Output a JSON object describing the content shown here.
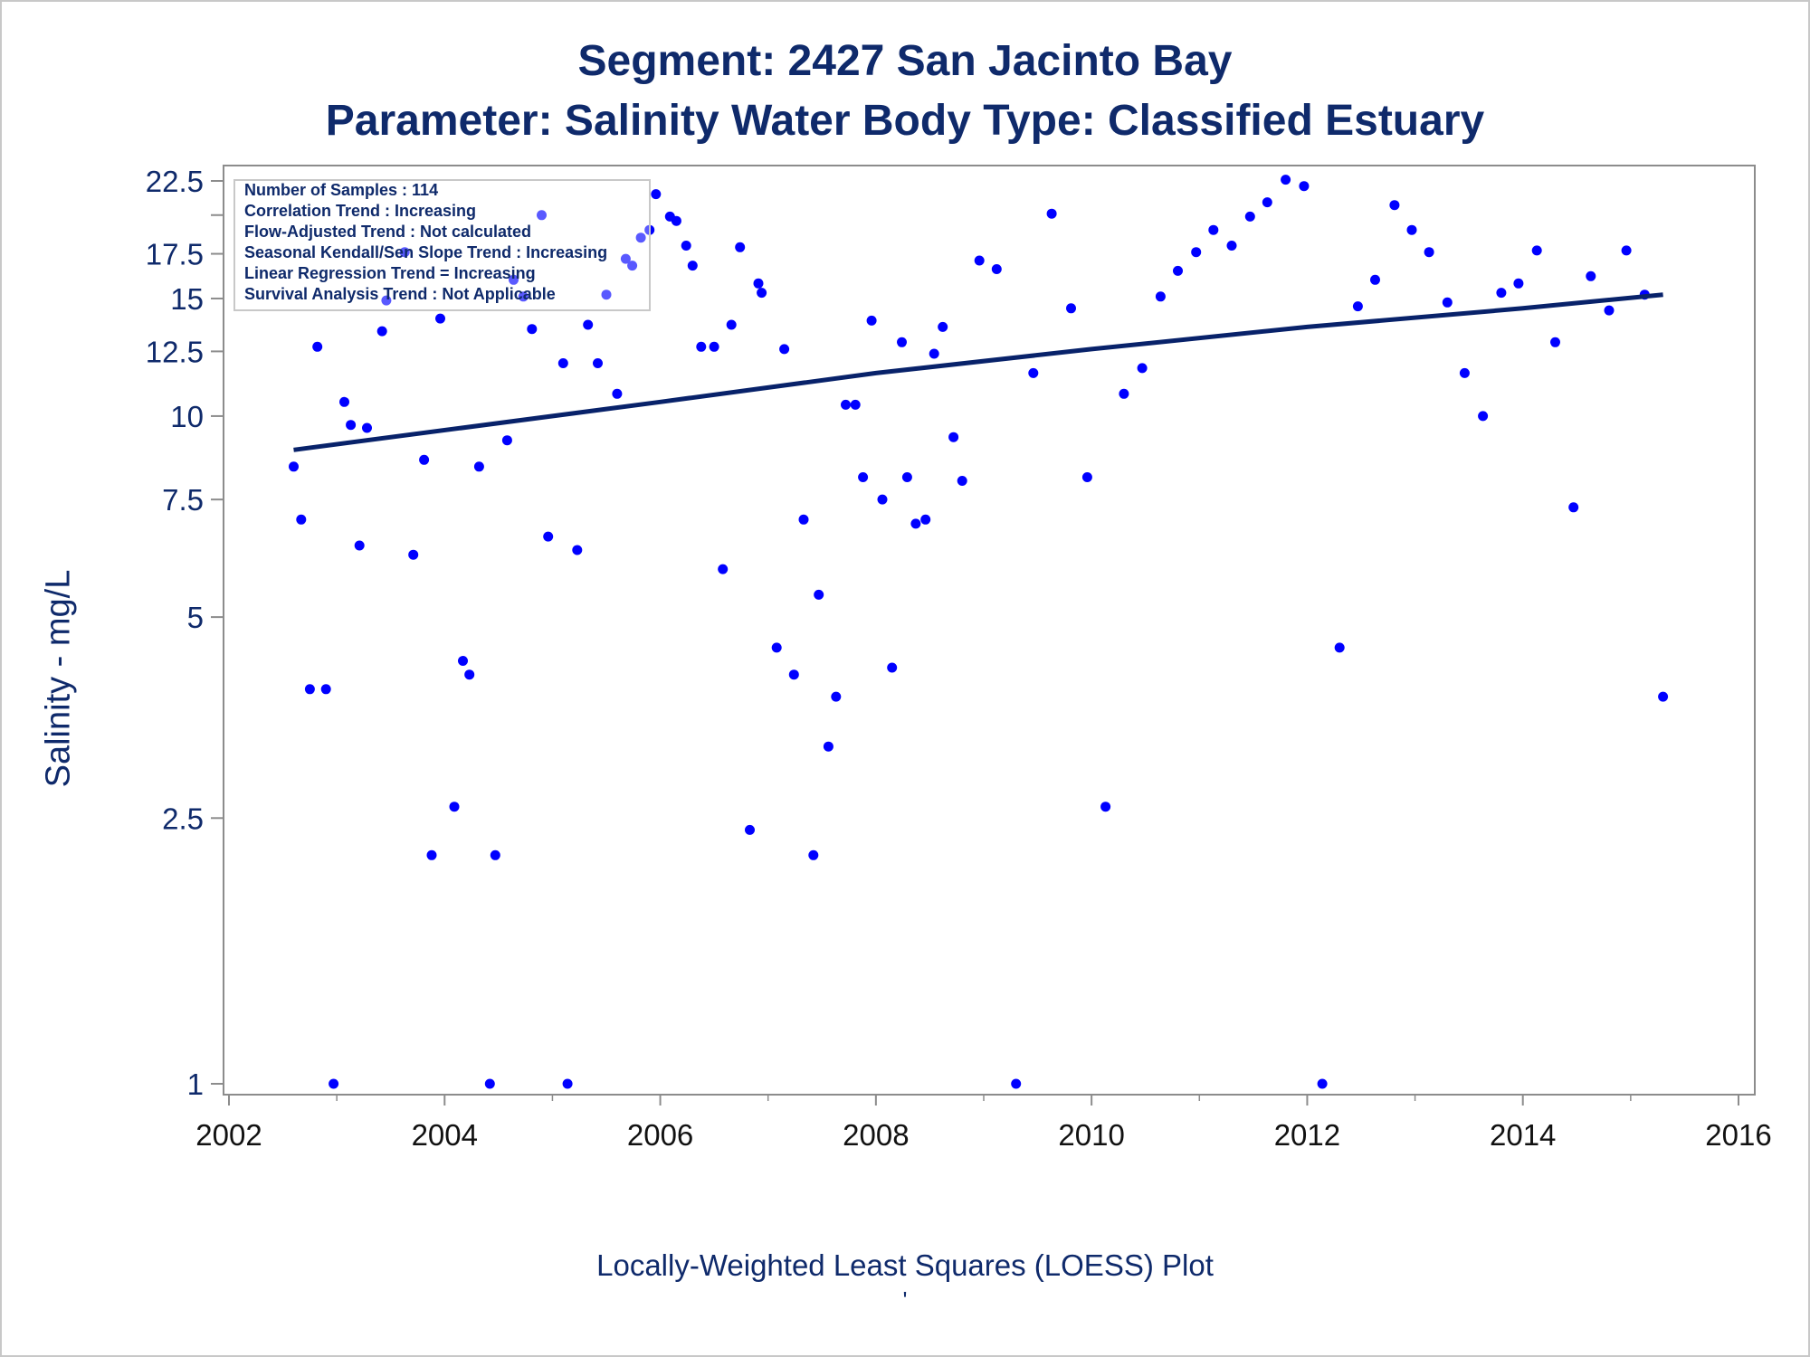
{
  "titles": {
    "line1": "Segment: 2427  San Jacinto Bay",
    "line2": "Parameter: Salinity   Water Body Type: Classified Estuary"
  },
  "legend_lines": [
    "Number of Samples : 114",
    "Correlation Trend : Increasing",
    "Flow-Adjusted Trend : Not calculated",
    "Seasonal Kendall/Sen Slope Trend : Increasing",
    "Linear Regression Trend = Increasing",
    "Survival Analysis Trend : Not Applicable"
  ],
  "footer_mark": "'",
  "colors": {
    "text": "#0f2a6b",
    "points": "#0000ff",
    "line": "#08226a",
    "axis": "#8c8c8c",
    "frame": "#c8c8c8"
  },
  "chart_data": {
    "type": "scatter",
    "xlabel": "Locally-Weighted Least Squares (LOESS) Plot",
    "ylabel": "Salinity - mg/L",
    "y_scale": "log",
    "xlim": [
      2002,
      2016
    ],
    "ylim": [
      1,
      22.5
    ],
    "x_ticks": [
      "2002",
      "2004",
      "2006",
      "2008",
      "2010",
      "2012",
      "2014",
      "2016"
    ],
    "y_ticks": [
      "1",
      "2.5",
      "5",
      "7.5",
      "10",
      "12.5",
      "15",
      "17.5",
      "22.5"
    ],
    "grid": false,
    "legend_position": "top-left",
    "series": [
      {
        "type": "scatter",
        "points": [
          [
            2002.6,
            8.4
          ],
          [
            2002.67,
            7.0
          ],
          [
            2002.75,
            3.9
          ],
          [
            2002.82,
            12.7
          ],
          [
            2002.9,
            3.9
          ],
          [
            2002.97,
            1.0
          ],
          [
            2003.07,
            10.5
          ],
          [
            2003.13,
            9.7
          ],
          [
            2003.21,
            6.4
          ],
          [
            2003.28,
            9.6
          ],
          [
            2003.42,
            13.4
          ],
          [
            2003.46,
            14.9
          ],
          [
            2003.63,
            17.6
          ],
          [
            2003.71,
            6.2
          ],
          [
            2003.81,
            8.6
          ],
          [
            2003.88,
            2.2
          ],
          [
            2003.96,
            14.0
          ],
          [
            2004.09,
            2.6
          ],
          [
            2004.17,
            4.3
          ],
          [
            2004.23,
            4.1
          ],
          [
            2004.32,
            8.4
          ],
          [
            2004.42,
            1.0
          ],
          [
            2004.47,
            2.2
          ],
          [
            2004.58,
            9.2
          ],
          [
            2004.64,
            16.0
          ],
          [
            2004.73,
            15.1
          ],
          [
            2004.81,
            13.5
          ],
          [
            2004.9,
            20.0
          ],
          [
            2004.96,
            6.6
          ],
          [
            2005.1,
            12.0
          ],
          [
            2005.14,
            1.0
          ],
          [
            2005.23,
            6.3
          ],
          [
            2005.33,
            13.7
          ],
          [
            2005.42,
            12.0
          ],
          [
            2005.5,
            15.2
          ],
          [
            2005.6,
            10.8
          ],
          [
            2005.68,
            17.2
          ],
          [
            2005.74,
            16.8
          ],
          [
            2005.82,
            18.5
          ],
          [
            2005.9,
            19.0
          ],
          [
            2005.96,
            21.5
          ],
          [
            2006.09,
            19.9
          ],
          [
            2006.15,
            19.6
          ],
          [
            2006.24,
            18.0
          ],
          [
            2006.3,
            16.8
          ],
          [
            2006.38,
            12.7
          ],
          [
            2006.5,
            12.7
          ],
          [
            2006.58,
            5.9
          ],
          [
            2006.66,
            13.7
          ],
          [
            2006.74,
            17.9
          ],
          [
            2006.83,
            2.4
          ],
          [
            2006.91,
            15.8
          ],
          [
            2006.94,
            15.3
          ],
          [
            2007.08,
            4.5
          ],
          [
            2007.15,
            12.6
          ],
          [
            2007.24,
            4.1
          ],
          [
            2007.33,
            7.0
          ],
          [
            2007.42,
            2.2
          ],
          [
            2007.47,
            5.4
          ],
          [
            2007.56,
            3.2
          ],
          [
            2007.63,
            3.8
          ],
          [
            2007.72,
            10.4
          ],
          [
            2007.81,
            10.4
          ],
          [
            2007.88,
            8.1
          ],
          [
            2007.96,
            13.9
          ],
          [
            2008.06,
            7.5
          ],
          [
            2008.15,
            4.2
          ],
          [
            2008.24,
            12.9
          ],
          [
            2008.29,
            8.1
          ],
          [
            2008.37,
            6.9
          ],
          [
            2008.46,
            7.0
          ],
          [
            2008.54,
            12.4
          ],
          [
            2008.62,
            13.6
          ],
          [
            2008.72,
            9.3
          ],
          [
            2008.8,
            8.0
          ],
          [
            2008.96,
            17.1
          ],
          [
            2009.12,
            16.6
          ],
          [
            2009.3,
            1.0
          ],
          [
            2009.46,
            11.6
          ],
          [
            2009.63,
            20.1
          ],
          [
            2009.81,
            14.5
          ],
          [
            2009.96,
            8.1
          ],
          [
            2010.13,
            2.6
          ],
          [
            2010.3,
            10.8
          ],
          [
            2010.47,
            11.8
          ],
          [
            2010.64,
            15.1
          ],
          [
            2010.8,
            16.5
          ],
          [
            2010.97,
            17.6
          ],
          [
            2011.13,
            19.0
          ],
          [
            2011.3,
            18.0
          ],
          [
            2011.47,
            19.9
          ],
          [
            2011.63,
            20.9
          ],
          [
            2011.8,
            22.6
          ],
          [
            2011.97,
            22.1
          ],
          [
            2012.14,
            1.0
          ],
          [
            2012.3,
            4.5
          ],
          [
            2012.47,
            14.6
          ],
          [
            2012.63,
            16.0
          ],
          [
            2012.81,
            20.7
          ],
          [
            2012.97,
            19.0
          ],
          [
            2013.13,
            17.6
          ],
          [
            2013.3,
            14.8
          ],
          [
            2013.46,
            11.6
          ],
          [
            2013.63,
            10.0
          ],
          [
            2013.8,
            15.3
          ],
          [
            2013.96,
            15.8
          ],
          [
            2014.13,
            17.7
          ],
          [
            2014.3,
            12.9
          ],
          [
            2014.47,
            7.3
          ],
          [
            2014.63,
            16.2
          ],
          [
            2014.8,
            14.4
          ],
          [
            2014.96,
            17.7
          ],
          [
            2015.13,
            15.2
          ],
          [
            2015.3,
            3.8
          ]
        ]
      },
      {
        "type": "line",
        "points": [
          [
            2002.6,
            8.9
          ],
          [
            2006.0,
            10.5
          ],
          [
            2008.0,
            11.6
          ],
          [
            2010.0,
            12.6
          ],
          [
            2012.0,
            13.6
          ],
          [
            2014.0,
            14.5
          ],
          [
            2015.3,
            15.2
          ]
        ]
      }
    ]
  }
}
